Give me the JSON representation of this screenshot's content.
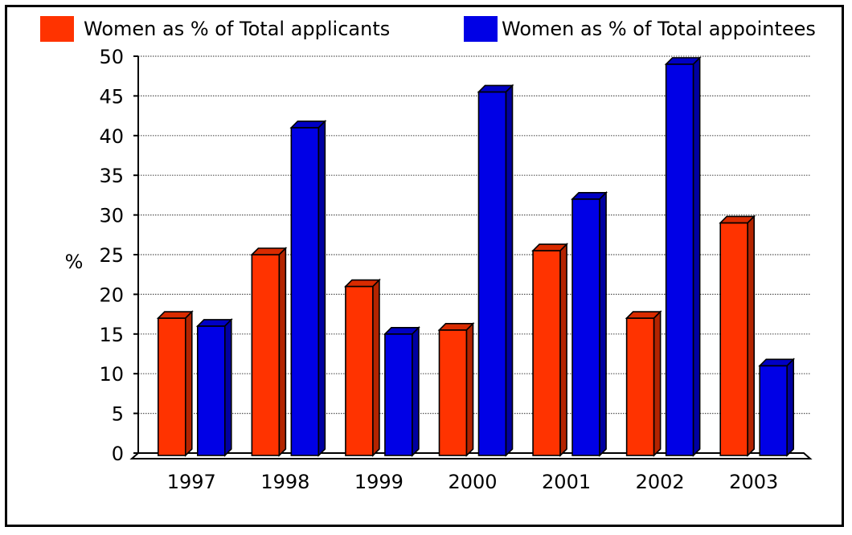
{
  "chart_data": {
    "type": "bar",
    "title": "",
    "xlabel": "",
    "ylabel": "%",
    "ylim": [
      0,
      50
    ],
    "yticks": [
      0,
      5,
      10,
      15,
      20,
      25,
      30,
      35,
      40,
      45,
      50
    ],
    "categories": [
      "1997",
      "1998",
      "1999",
      "2000",
      "2001",
      "2002",
      "2003"
    ],
    "series": [
      {
        "name": "Women as % of Total applicants",
        "color": "#FF3300",
        "values": [
          17,
          25,
          21,
          15.5,
          25.5,
          17,
          29
        ]
      },
      {
        "name": "Women as % of Total appointees",
        "color": "#0000E6",
        "values": [
          16,
          41,
          15,
          45.5,
          32,
          49,
          11
        ]
      }
    ],
    "legend_position": "top",
    "grid": true
  }
}
